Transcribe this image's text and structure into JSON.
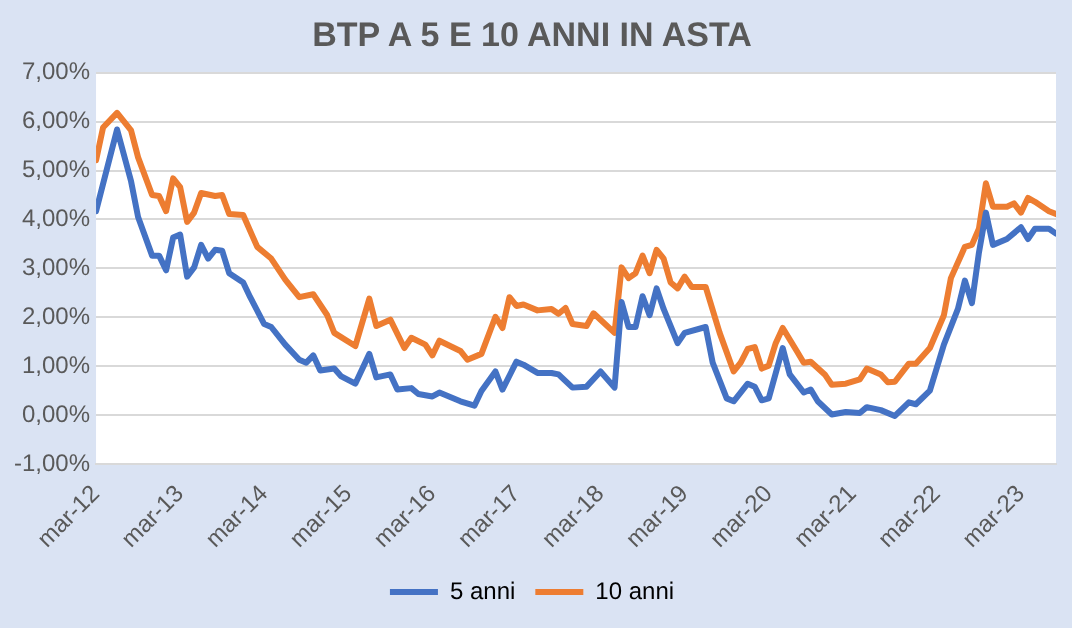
{
  "chart_data": {
    "type": "line",
    "title": "BTP A 5 E 10 ANNI IN ASTA",
    "xlim": [
      "2012-03",
      "2023-08"
    ],
    "xticks": [
      {
        "value": "2012-03",
        "label": "mar-12"
      },
      {
        "value": "2013-03",
        "label": "mar-13"
      },
      {
        "value": "2014-03",
        "label": "mar-14"
      },
      {
        "value": "2015-03",
        "label": "mar-15"
      },
      {
        "value": "2016-03",
        "label": "mar-16"
      },
      {
        "value": "2017-03",
        "label": "mar-17"
      },
      {
        "value": "2018-03",
        "label": "mar-18"
      },
      {
        "value": "2019-03",
        "label": "mar-19"
      },
      {
        "value": "2020-03",
        "label": "mar-20"
      },
      {
        "value": "2021-03",
        "label": "mar-21"
      },
      {
        "value": "2022-03",
        "label": "mar-22"
      },
      {
        "value": "2023-03",
        "label": "mar-23"
      }
    ],
    "ylim": [
      -1,
      7
    ],
    "yticks": [
      {
        "value": -1,
        "label": "-1,00%"
      },
      {
        "value": 0,
        "label": "0,00%"
      },
      {
        "value": 1,
        "label": "1,00%"
      },
      {
        "value": 2,
        "label": "2,00%"
      },
      {
        "value": 3,
        "label": "3,00%"
      },
      {
        "value": 4,
        "label": "4,00%"
      },
      {
        "value": 5,
        "label": "5,00%"
      },
      {
        "value": 6,
        "label": "6,00%"
      },
      {
        "value": 7,
        "label": "7,00%"
      }
    ],
    "grid": "y",
    "legend": "bottom",
    "marker": "none",
    "line_style": "solid",
    "series": [
      {
        "name": "5 anni",
        "color": "#4472c4",
        "x": [
          "2012-03",
          "2012-06",
          "2012-08",
          "2012-09",
          "2012-11",
          "2012-12",
          "2013-01",
          "2013-02",
          "2013-03",
          "2013-04",
          "2013-05",
          "2013-06",
          "2013-07",
          "2013-08",
          "2013-09",
          "2013-10",
          "2013-12",
          "2014-01",
          "2014-03",
          "2014-04",
          "2014-06",
          "2014-08",
          "2014-09",
          "2014-10",
          "2014-11",
          "2015-01",
          "2015-02",
          "2015-04",
          "2015-06",
          "2015-07",
          "2015-09",
          "2015-10",
          "2015-12",
          "2016-01",
          "2016-03",
          "2016-04",
          "2016-07",
          "2016-09",
          "2016-10",
          "2016-12",
          "2017-01",
          "2017-03",
          "2017-04",
          "2017-06",
          "2017-08",
          "2017-09",
          "2017-11",
          "2018-01",
          "2018-03",
          "2018-05",
          "2018-06",
          "2018-07",
          "2018-08",
          "2018-09",
          "2018-10",
          "2018-11",
          "2018-12",
          "2019-02",
          "2019-03",
          "2019-06",
          "2019-07",
          "2019-09",
          "2019-10",
          "2019-12",
          "2020-01",
          "2020-02",
          "2020-03",
          "2020-05",
          "2020-06",
          "2020-08",
          "2020-09",
          "2020-10",
          "2020-12",
          "2021-02",
          "2021-04",
          "2021-05",
          "2021-07",
          "2021-09",
          "2021-11",
          "2021-12",
          "2022-02",
          "2022-04",
          "2022-06",
          "2022-07",
          "2022-08",
          "2022-09",
          "2022-10",
          "2022-11",
          "2023-01",
          "2023-03",
          "2023-04",
          "2023-05",
          "2023-07",
          "2023-08"
        ],
        "values": [
          4.17,
          5.84,
          4.78,
          4.05,
          3.26,
          3.26,
          2.96,
          3.63,
          3.69,
          2.83,
          3.02,
          3.48,
          3.2,
          3.38,
          3.36,
          2.9,
          2.71,
          2.41,
          1.86,
          1.8,
          1.44,
          1.13,
          1.07,
          1.22,
          0.91,
          0.95,
          0.79,
          0.64,
          1.25,
          0.77,
          0.83,
          0.52,
          0.55,
          0.43,
          0.38,
          0.46,
          0.28,
          0.19,
          0.49,
          0.89,
          0.52,
          1.09,
          1.03,
          0.86,
          0.86,
          0.83,
          0.56,
          0.58,
          0.89,
          0.56,
          2.31,
          1.8,
          1.8,
          2.43,
          2.04,
          2.59,
          2.17,
          1.47,
          1.68,
          1.8,
          1.07,
          0.34,
          0.28,
          0.64,
          0.58,
          0.3,
          0.34,
          1.37,
          0.83,
          0.46,
          0.52,
          0.28,
          0.01,
          0.06,
          0.04,
          0.16,
          0.1,
          -0.02,
          0.26,
          0.22,
          0.5,
          1.44,
          2.17,
          2.75,
          2.29,
          3.32,
          4.14,
          3.48,
          3.6,
          3.84,
          3.6,
          3.81,
          3.81,
          3.71
        ]
      },
      {
        "name": "10 anni",
        "color": "#ed7d31",
        "x": [
          "2012-03",
          "2012-04",
          "2012-06",
          "2012-08",
          "2012-09",
          "2012-11",
          "2012-12",
          "2013-01",
          "2013-02",
          "2013-03",
          "2013-04",
          "2013-05",
          "2013-06",
          "2013-08",
          "2013-09",
          "2013-10",
          "2013-12",
          "2014-02",
          "2014-04",
          "2014-06",
          "2014-08",
          "2014-10",
          "2014-12",
          "2015-01",
          "2015-04",
          "2015-06",
          "2015-07",
          "2015-09",
          "2015-11",
          "2015-12",
          "2016-02",
          "2016-03",
          "2016-04",
          "2016-07",
          "2016-08",
          "2016-10",
          "2016-12",
          "2017-01",
          "2017-02",
          "2017-03",
          "2017-04",
          "2017-06",
          "2017-08",
          "2017-09",
          "2017-10",
          "2017-11",
          "2018-01",
          "2018-02",
          "2018-05",
          "2018-06",
          "2018-07",
          "2018-08",
          "2018-09",
          "2018-10",
          "2018-11",
          "2018-12",
          "2019-01",
          "2019-02",
          "2019-03",
          "2019-04",
          "2019-06",
          "2019-08",
          "2019-10",
          "2019-11",
          "2019-12",
          "2020-01",
          "2020-02",
          "2020-03",
          "2020-04",
          "2020-05",
          "2020-07",
          "2020-08",
          "2020-09",
          "2020-11",
          "2020-12",
          "2021-02",
          "2021-04",
          "2021-05",
          "2021-07",
          "2021-08",
          "2021-09",
          "2021-11",
          "2021-12",
          "2022-02",
          "2022-04",
          "2022-05",
          "2022-07",
          "2022-08",
          "2022-09",
          "2022-10",
          "2022-11",
          "2023-01",
          "2023-02",
          "2023-03",
          "2023-04",
          "2023-05",
          "2023-07",
          "2023-08"
        ],
        "values": [
          5.21,
          5.88,
          6.18,
          5.82,
          5.27,
          4.5,
          4.48,
          4.17,
          4.84,
          4.66,
          3.95,
          4.14,
          4.54,
          4.48,
          4.5,
          4.11,
          4.09,
          3.44,
          3.2,
          2.77,
          2.41,
          2.47,
          2.04,
          1.68,
          1.41,
          2.38,
          1.82,
          1.95,
          1.37,
          1.58,
          1.44,
          1.22,
          1.52,
          1.31,
          1.13,
          1.25,
          2.01,
          1.78,
          2.41,
          2.23,
          2.26,
          2.14,
          2.17,
          2.07,
          2.19,
          1.86,
          1.82,
          2.08,
          1.68,
          3.02,
          2.8,
          2.9,
          3.26,
          2.9,
          3.38,
          3.2,
          2.71,
          2.59,
          2.83,
          2.62,
          2.62,
          1.68,
          0.89,
          1.07,
          1.35,
          1.39,
          0.95,
          1.01,
          1.47,
          1.78,
          1.31,
          1.07,
          1.09,
          0.83,
          0.62,
          0.64,
          0.73,
          0.95,
          0.83,
          0.67,
          0.68,
          1.05,
          1.05,
          1.37,
          2.04,
          2.8,
          3.44,
          3.48,
          3.81,
          4.74,
          4.26,
          4.26,
          4.33,
          4.14,
          4.44,
          4.36,
          4.17,
          4.11
        ]
      }
    ]
  }
}
